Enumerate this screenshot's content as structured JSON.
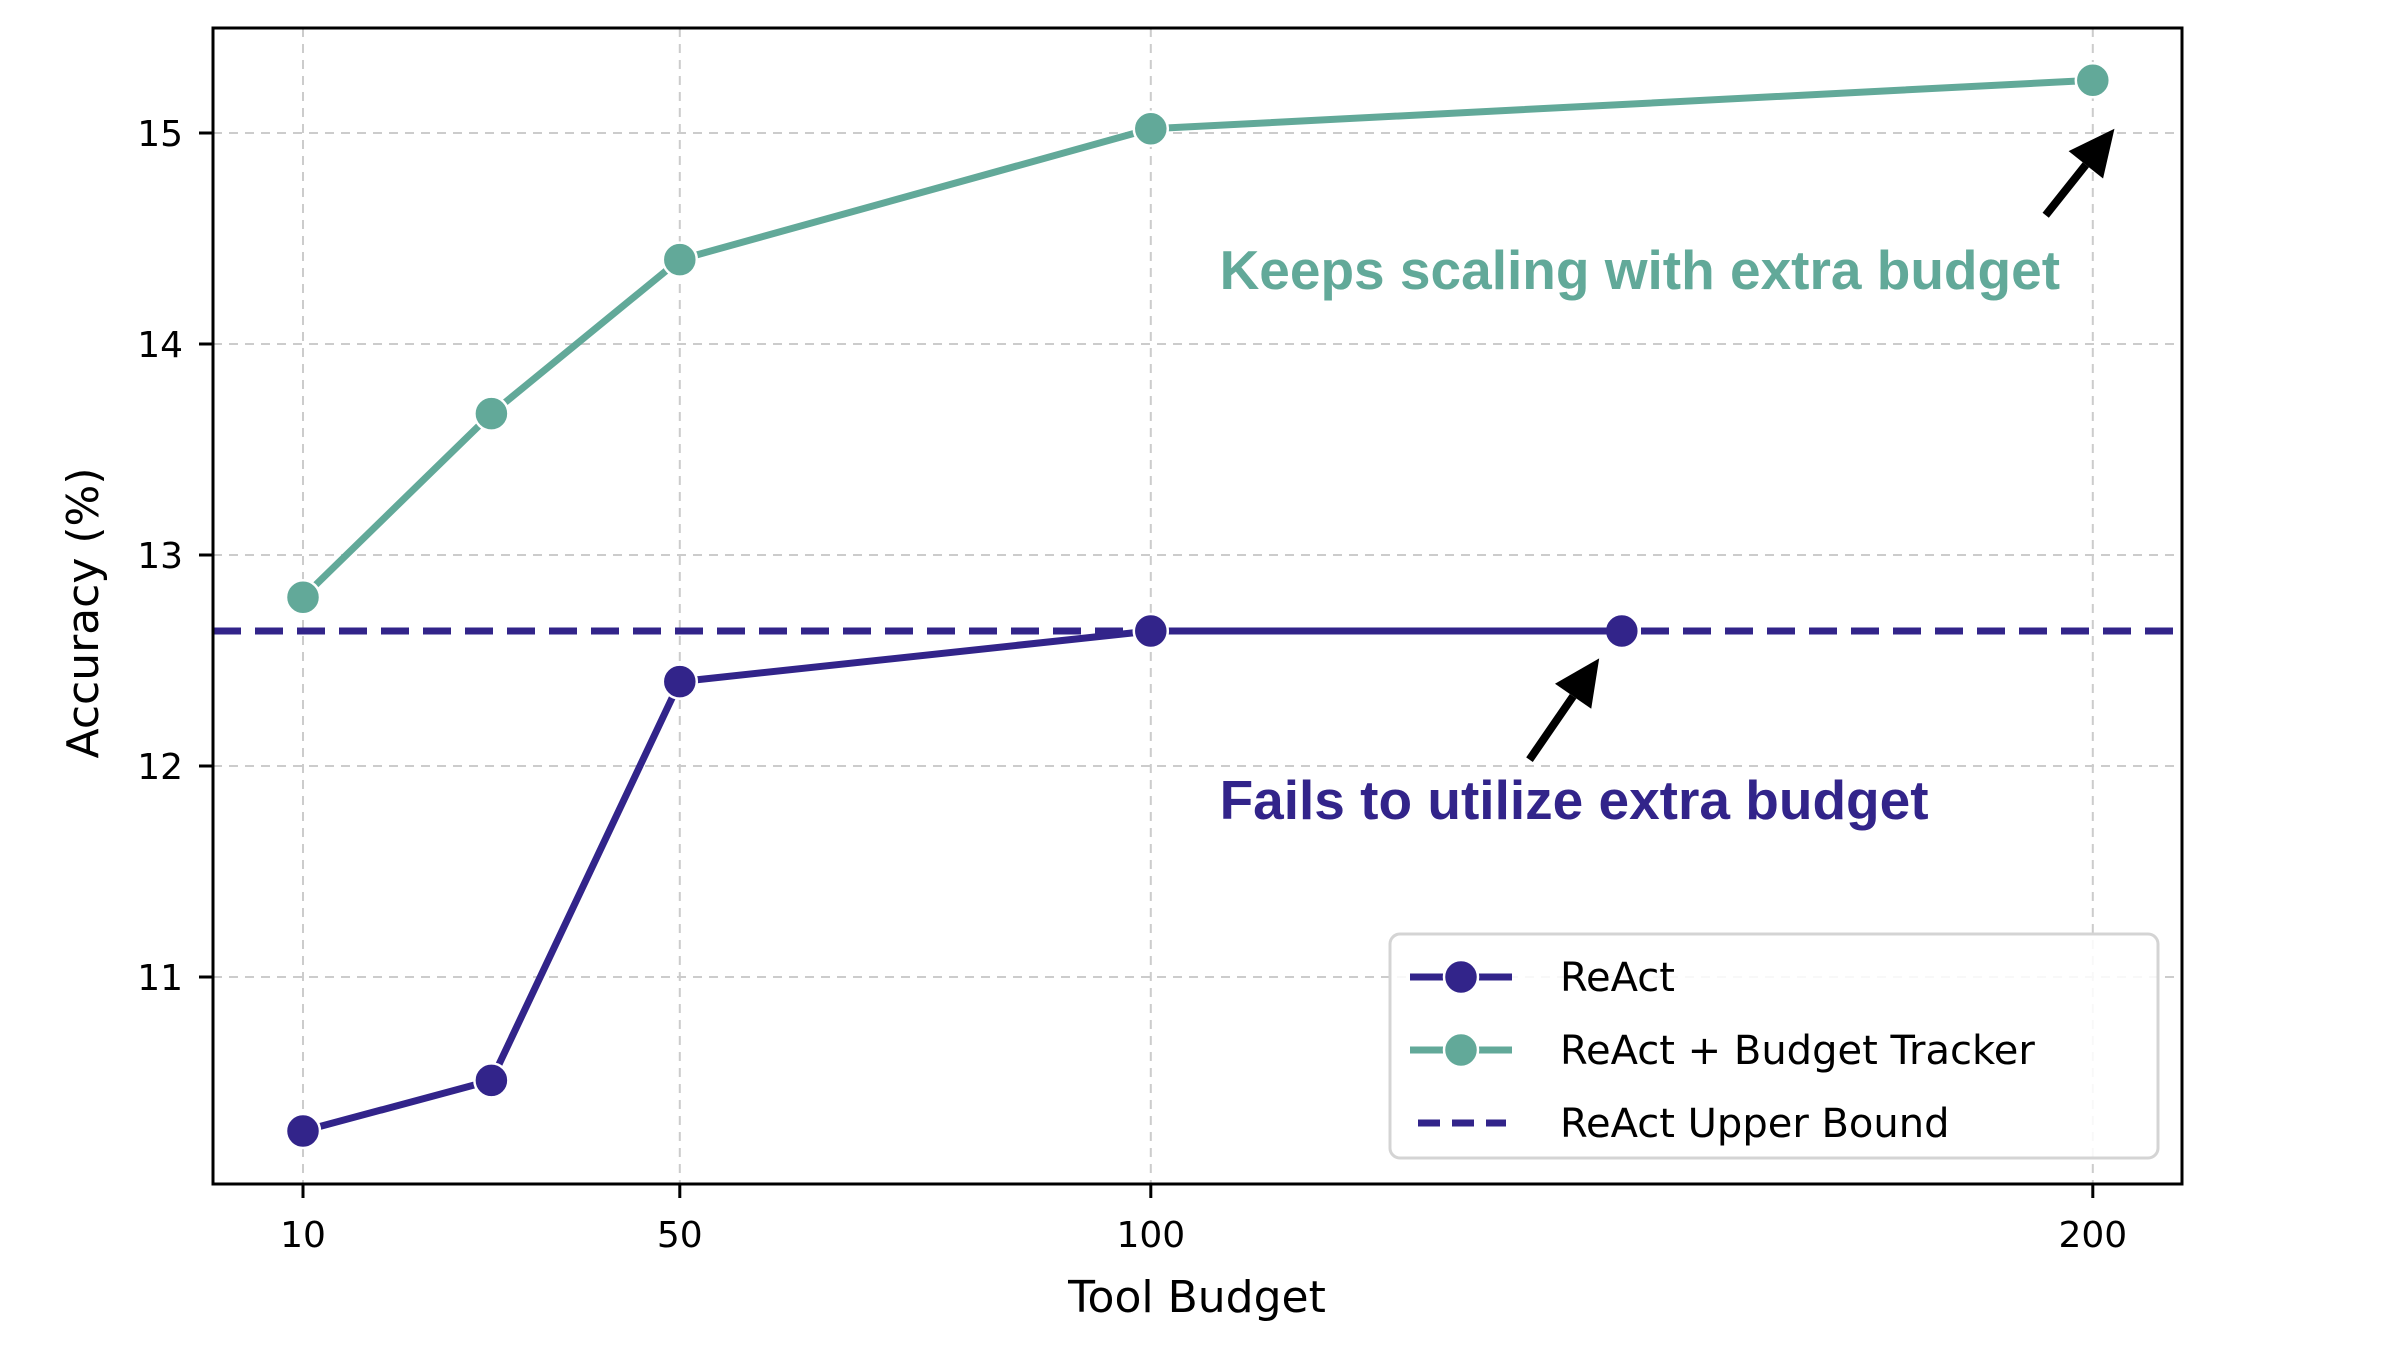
{
  "chart_data": {
    "type": "line",
    "title": "",
    "xlabel": "Tool Budget",
    "ylabel": "Accuracy (%)",
    "xlim": [
      4,
      220
    ],
    "ylim": [
      10.03,
      15.5
    ],
    "x_ticks": [
      10,
      50,
      100,
      200
    ],
    "y_ticks": [
      11,
      12,
      13,
      14,
      15
    ],
    "grid": true,
    "legend_position": "lower right",
    "series": [
      {
        "name": "ReAct",
        "color": "#32248a",
        "style": "solid",
        "marker": "circle",
        "x": [
          10,
          30,
          50,
          100,
          150
        ],
        "values": [
          10.27,
          10.51,
          12.4,
          12.64,
          12.64
        ]
      },
      {
        "name": "ReAct + Budget Tracker",
        "color": "#62a999",
        "style": "solid",
        "marker": "circle",
        "x": [
          10,
          30,
          50,
          100,
          200
        ],
        "values": [
          12.8,
          13.67,
          14.4,
          15.02,
          15.25
        ]
      },
      {
        "name": "ReAct Upper Bound",
        "color": "#32248a",
        "style": "dashed",
        "marker": "none",
        "hline": 12.64
      }
    ],
    "annotations": [
      {
        "text": "Keeps scaling with extra budget",
        "color": "#62a999",
        "text_x": 107.3,
        "text_y": 14.26,
        "arrow_from": [
          195.0,
          14.61
        ],
        "arrow_to": [
          202.3,
          15.02
        ]
      },
      {
        "text": "Fails to utilize extra budget",
        "color": "#32248a",
        "text_x": 107.3,
        "text_y": 11.75,
        "arrow_from": [
          140.2,
          12.03
        ],
        "arrow_to": [
          147.6,
          12.51
        ]
      }
    ]
  }
}
